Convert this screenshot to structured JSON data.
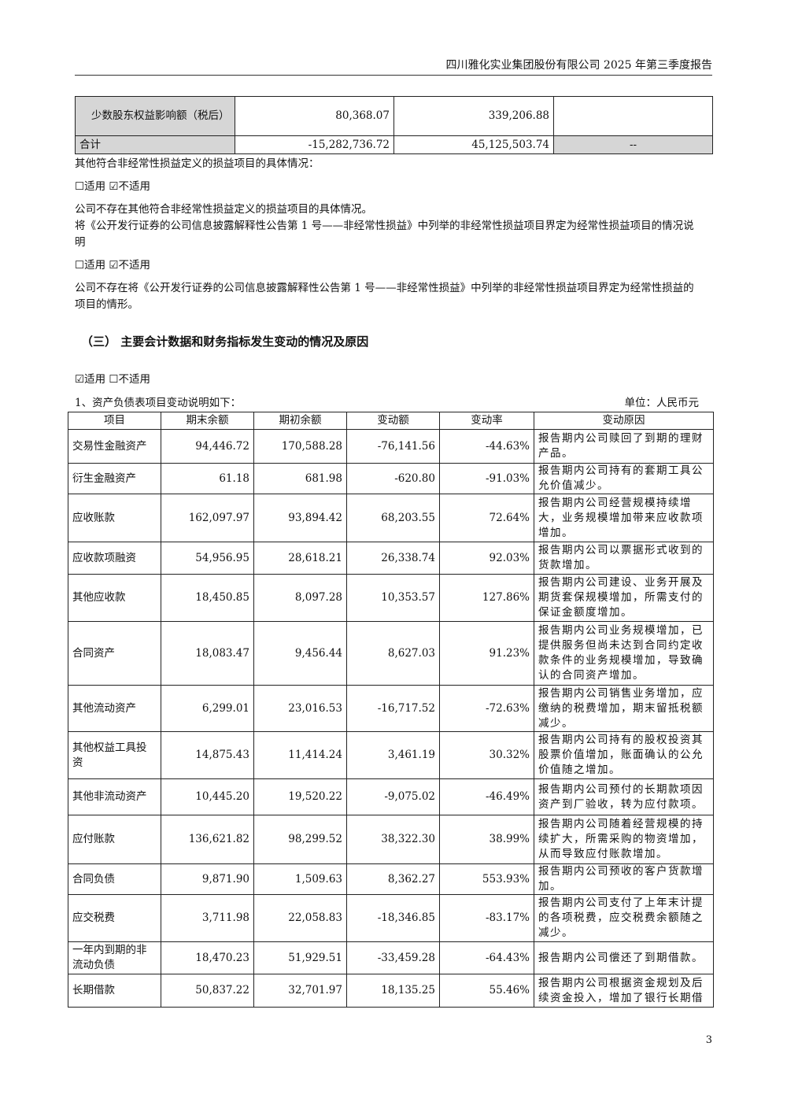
{
  "header": {
    "title": "四川雅化实业集团股份有限公司 2025 年第三季度报告"
  },
  "top_table": {
    "rows": [
      {
        "label": "少数股东权益影响额（税后）",
        "current": "80,368.07",
        "ytd": "339,206.88",
        "note": ""
      },
      {
        "label": "合计",
        "current": "-15,282,736.72",
        "ytd": "45,125,503.74",
        "note": "--"
      }
    ]
  },
  "paragraphs": {
    "p1": "其他符合非经常性损益定义的损益项目的具体情况：",
    "c1": "☐适用 ☑不适用",
    "p2": "公司不存在其他符合非经常性损益定义的损益项目的具体情况。",
    "p3": "将《公开发行证券的公司信息披露解释性公告第 1 号——非经常性损益》中列举的非经常性损益项目界定为经常性损益项目的情况说明",
    "c2": "☐适用 ☑不适用",
    "p4": "公司不存在将《公开发行证券的公司信息披露解释性公告第 1 号——非经常性损益》中列举的非经常性损益项目界定为经常性损益的项目的情形。"
  },
  "section": {
    "title": "（三）  主要会计数据和财务指标发生变动的情况及原因",
    "checkbox": "☑适用 ☐不适用",
    "subtitle": "1、资产负债表项目变动说明如下：",
    "unit": "单位：人民币元"
  },
  "main_table": {
    "headers": [
      "项目",
      "期末余额",
      "期初余额",
      "变动额",
      "变动率",
      "变动原因"
    ],
    "rows": [
      [
        "交易性金融资产",
        "94,446.72",
        "170,588.28",
        "-76,141.56",
        "-44.63%",
        "报告期内公司赎回了到期的理财产品。"
      ],
      [
        "衍生金融资产",
        "61.18",
        "681.98",
        "-620.80",
        "-91.03%",
        "报告期内公司持有的套期工具公允价值减少。"
      ],
      [
        "应收账款",
        "162,097.97",
        "93,894.42",
        "68,203.55",
        "72.64%",
        "报告期内公司经营规模持续增大，业务规模增加带来应收款项增加。"
      ],
      [
        "应收款项融资",
        "54,956.95",
        "28,618.21",
        "26,338.74",
        "92.03%",
        "报告期内公司以票据形式收到的货款增加。"
      ],
      [
        "其他应收款",
        "18,450.85",
        "8,097.28",
        "10,353.57",
        "127.86%",
        "报告期内公司建设、业务开展及期货套保规模增加，所需支付的保证金额度增加。"
      ],
      [
        "合同资产",
        "18,083.47",
        "9,456.44",
        "8,627.03",
        "91.23%",
        "报告期内公司业务规模增加，已提供服务但尚未达到合同约定收款条件的业务规模增加，导致确认的合同资产增加。"
      ],
      [
        "其他流动资产",
        "6,299.01",
        "23,016.53",
        "-16,717.52",
        "-72.63%",
        "报告期内公司销售业务增加，应缴纳的税费增加，期末留抵税额减少。"
      ],
      [
        "其他权益工具投资",
        "14,875.43",
        "11,414.24",
        "3,461.19",
        "30.32%",
        "报告期内公司持有的股权投资其股票价值增加，账面确认的公允价值随之增加。"
      ],
      [
        "其他非流动资产",
        "10,445.20",
        "19,520.22",
        "-9,075.02",
        "-46.49%",
        "报告期内公司预付的长期款项因资产到厂验收，转为应付款项。"
      ],
      [
        "应付账款",
        "136,621.82",
        "98,299.52",
        "38,322.30",
        "38.99%",
        "报告期内公司随着经营规模的持续扩大，所需采购的物资增加，从而导致应付账款增加。"
      ],
      [
        "合同负债",
        "9,871.90",
        "1,509.63",
        "8,362.27",
        "553.93%",
        "报告期内公司预收的客户货款增加。"
      ],
      [
        "应交税费",
        "3,711.98",
        "22,058.83",
        "-18,346.85",
        "-83.17%",
        "报告期内公司支付了上年末计提的各项税费，应交税费余额随之减少。"
      ],
      [
        "一年内到期的非流动负债",
        "18,470.23",
        "51,929.51",
        "-33,459.28",
        "-64.43%",
        "报告期内公司偿还了到期借款。"
      ],
      [
        "长期借款",
        "50,837.22",
        "32,701.97",
        "18,135.25",
        "55.46%",
        "报告期内公司根据资金规划及后续资金投入，增加了银行长期借"
      ]
    ]
  },
  "page_number": "3"
}
